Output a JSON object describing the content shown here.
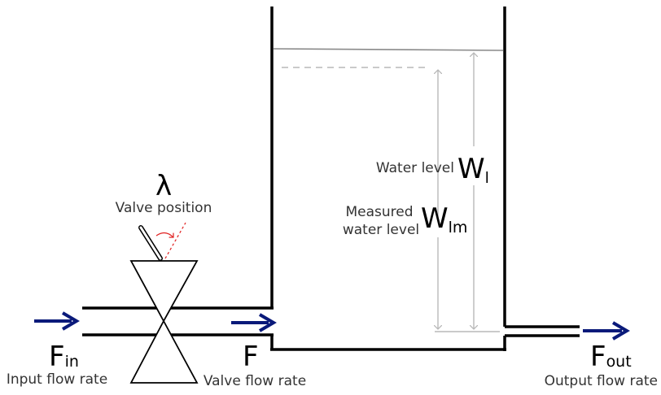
{
  "symbols": {
    "lambda": "λ",
    "f_in_main": "F",
    "f_in_sub": "in",
    "f_main": "F",
    "f_out_main": "F",
    "f_out_sub": "out",
    "wl_main": "W",
    "wl_sub": "l",
    "wlm_main": "W",
    "wlm_sub": "lm"
  },
  "labels": {
    "valve_position": "Valve position",
    "input_flow_rate": "Input flow rate",
    "valve_flow_rate": "Valve flow rate",
    "output_flow_rate": "Output flow rate",
    "water_level": "Water level",
    "measured_line1": "Measured",
    "measured_line2": "water level"
  },
  "colors": {
    "flow_arrow": "#0a1a7a",
    "pipe": "#000000",
    "level_lines": "#b8b8b8",
    "valve_angle": "#e02020"
  }
}
